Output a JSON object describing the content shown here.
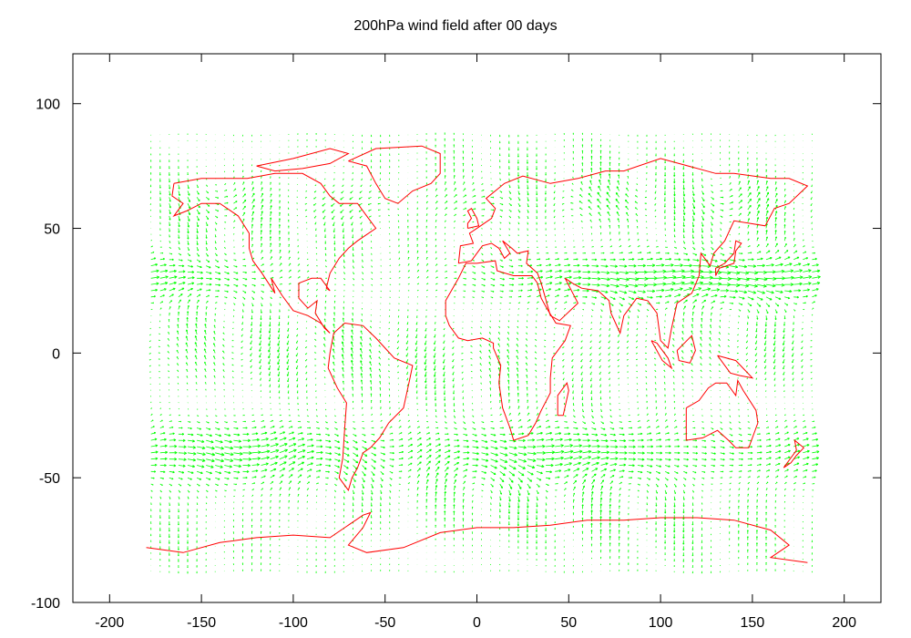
{
  "chart_data": {
    "type": "vector-field",
    "title": "200hPa wind field after 00 days",
    "xlabel": "",
    "ylabel": "",
    "xlim": [
      -220,
      220
    ],
    "ylim": [
      -100,
      120
    ],
    "xticks": [
      -200,
      -150,
      -100,
      -50,
      0,
      50,
      100,
      150,
      200
    ],
    "yticks": [
      100,
      50,
      0,
      -50,
      -100
    ],
    "grid": false,
    "legend": "none",
    "colors": {
      "vectors": "#00ff00",
      "coastlines": "#ff0000",
      "axes": "#000000"
    },
    "vector_grid": {
      "lon_range": [
        -177.5,
        182.5
      ],
      "lat_range": [
        -87.5,
        87.5
      ],
      "lon_step": 5,
      "lat_step": 2.5
    },
    "wind_pattern": [
      {
        "lat_center": 30,
        "u": 55,
        "description": "northern subtropical jet"
      },
      {
        "lat_center": -40,
        "u": 45,
        "description": "southern jet"
      },
      {
        "lat_center": 0,
        "u": -8,
        "description": "tropical easterlies"
      }
    ],
    "coastlines": [
      {
        "name": "north-america",
        "points": [
          [
            -165,
            68
          ],
          [
            -150,
            70
          ],
          [
            -140,
            70
          ],
          [
            -125,
            70
          ],
          [
            -110,
            72
          ],
          [
            -95,
            72
          ],
          [
            -85,
            68
          ],
          [
            -80,
            63
          ],
          [
            -75,
            60
          ],
          [
            -65,
            60
          ],
          [
            -60,
            55
          ],
          [
            -55,
            50
          ],
          [
            -65,
            45
          ],
          [
            -70,
            42
          ],
          [
            -75,
            38
          ],
          [
            -80,
            32
          ],
          [
            -82,
            26
          ],
          [
            -80,
            25
          ],
          [
            -85,
            30
          ],
          [
            -90,
            30
          ],
          [
            -97,
            28
          ],
          [
            -97,
            22
          ],
          [
            -92,
            18
          ],
          [
            -87,
            21
          ],
          [
            -88,
            16
          ],
          [
            -83,
            10
          ],
          [
            -80,
            8
          ],
          [
            -85,
            12
          ],
          [
            -92,
            15
          ],
          [
            -100,
            17
          ],
          [
            -106,
            23
          ],
          [
            -112,
            30
          ],
          [
            -110,
            24
          ],
          [
            -117,
            32
          ],
          [
            -122,
            37
          ],
          [
            -124,
            42
          ],
          [
            -124,
            48
          ],
          [
            -130,
            55
          ],
          [
            -140,
            60
          ],
          [
            -150,
            60
          ],
          [
            -158,
            57
          ],
          [
            -165,
            55
          ],
          [
            -160,
            60
          ],
          [
            -166,
            63
          ],
          [
            -165,
            68
          ]
        ]
      },
      {
        "name": "greenland",
        "points": [
          [
            -70,
            77
          ],
          [
            -55,
            82
          ],
          [
            -30,
            83
          ],
          [
            -20,
            80
          ],
          [
            -20,
            72
          ],
          [
            -25,
            68
          ],
          [
            -35,
            65
          ],
          [
            -43,
            60
          ],
          [
            -50,
            62
          ],
          [
            -55,
            68
          ],
          [
            -60,
            75
          ],
          [
            -70,
            77
          ]
        ]
      },
      {
        "name": "south-america",
        "points": [
          [
            -78,
            8
          ],
          [
            -72,
            12
          ],
          [
            -62,
            11
          ],
          [
            -55,
            6
          ],
          [
            -50,
            2
          ],
          [
            -45,
            -2
          ],
          [
            -35,
            -5
          ],
          [
            -37,
            -12
          ],
          [
            -40,
            -22
          ],
          [
            -48,
            -28
          ],
          [
            -53,
            -34
          ],
          [
            -58,
            -38
          ],
          [
            -62,
            -40
          ],
          [
            -65,
            -46
          ],
          [
            -68,
            -50
          ],
          [
            -70,
            -55
          ],
          [
            -75,
            -50
          ],
          [
            -73,
            -42
          ],
          [
            -72,
            -30
          ],
          [
            -71,
            -20
          ],
          [
            -76,
            -14
          ],
          [
            -81,
            -6
          ],
          [
            -80,
            0
          ],
          [
            -78,
            8
          ]
        ]
      },
      {
        "name": "africa-eurasia",
        "points": [
          [
            -17,
            15
          ],
          [
            -17,
            21
          ],
          [
            -10,
            30
          ],
          [
            -6,
            36
          ],
          [
            0,
            36
          ],
          [
            10,
            37
          ],
          [
            11,
            33
          ],
          [
            20,
            31
          ],
          [
            30,
            31
          ],
          [
            33,
            28
          ],
          [
            35,
            22
          ],
          [
            38,
            18
          ],
          [
            43,
            12
          ],
          [
            51,
            11
          ],
          [
            48,
            5
          ],
          [
            41,
            -2
          ],
          [
            40,
            -10
          ],
          [
            40,
            -16
          ],
          [
            35,
            -23
          ],
          [
            32,
            -28
          ],
          [
            28,
            -33
          ],
          [
            20,
            -35
          ],
          [
            18,
            -30
          ],
          [
            14,
            -22
          ],
          [
            12,
            -12
          ],
          [
            13,
            -5
          ],
          [
            9,
            2
          ],
          [
            9,
            4
          ],
          [
            3,
            6
          ],
          [
            -5,
            5
          ],
          [
            -10,
            6
          ],
          [
            -15,
            11
          ],
          [
            -17,
            15
          ]
        ]
      },
      {
        "name": "eurasia-north",
        "points": [
          [
            -10,
            36
          ],
          [
            -9,
            43
          ],
          [
            -2,
            44
          ],
          [
            -4,
            48
          ],
          [
            2,
            51
          ],
          [
            8,
            54
          ],
          [
            10,
            58
          ],
          [
            5,
            62
          ],
          [
            15,
            68
          ],
          [
            25,
            71
          ],
          [
            40,
            68
          ],
          [
            55,
            70
          ],
          [
            70,
            73
          ],
          [
            80,
            73
          ],
          [
            100,
            78
          ],
          [
            110,
            76
          ],
          [
            130,
            72
          ],
          [
            140,
            72
          ],
          [
            160,
            70
          ],
          [
            170,
            70
          ],
          [
            180,
            67
          ],
          [
            170,
            60
          ],
          [
            162,
            58
          ],
          [
            157,
            51
          ],
          [
            140,
            53
          ],
          [
            135,
            45
          ],
          [
            129,
            40
          ],
          [
            127,
            35
          ],
          [
            122,
            40
          ],
          [
            121,
            31
          ],
          [
            117,
            24
          ],
          [
            109,
            20
          ],
          [
            106,
            10
          ],
          [
            104,
            2
          ],
          [
            100,
            5
          ],
          [
            98,
            16
          ],
          [
            93,
            21
          ],
          [
            87,
            22
          ],
          [
            80,
            15
          ],
          [
            78,
            8
          ],
          [
            73,
            16
          ],
          [
            72,
            21
          ],
          [
            66,
            25
          ],
          [
            57,
            26
          ],
          [
            52,
            28
          ],
          [
            48,
            30
          ],
          [
            55,
            20
          ],
          [
            45,
            13
          ],
          [
            40,
            15
          ],
          [
            35,
            28
          ],
          [
            33,
            32
          ],
          [
            27,
            36
          ],
          [
            28,
            41
          ],
          [
            22,
            40
          ],
          [
            19,
            42
          ],
          [
            14,
            45
          ],
          [
            18,
            40
          ],
          [
            15,
            38
          ],
          [
            12,
            42
          ],
          [
            8,
            44
          ],
          [
            3,
            43
          ],
          [
            -3,
            37
          ],
          [
            -10,
            36
          ]
        ]
      },
      {
        "name": "australia",
        "points": [
          [
            114,
            -22
          ],
          [
            114,
            -35
          ],
          [
            123,
            -34
          ],
          [
            131,
            -31
          ],
          [
            137,
            -35
          ],
          [
            141,
            -38
          ],
          [
            148,
            -38
          ],
          [
            153,
            -28
          ],
          [
            152,
            -23
          ],
          [
            145,
            -15
          ],
          [
            142,
            -11
          ],
          [
            141,
            -17
          ],
          [
            136,
            -12
          ],
          [
            130,
            -12
          ],
          [
            126,
            -14
          ],
          [
            121,
            -19
          ],
          [
            114,
            -22
          ]
        ]
      },
      {
        "name": "antarctica",
        "points": [
          [
            -180,
            -78
          ],
          [
            -160,
            -80
          ],
          [
            -140,
            -76
          ],
          [
            -120,
            -74
          ],
          [
            -100,
            -73
          ],
          [
            -80,
            -74
          ],
          [
            -62,
            -65
          ],
          [
            -58,
            -64
          ],
          [
            -62,
            -70
          ],
          [
            -70,
            -77
          ],
          [
            -60,
            -80
          ],
          [
            -40,
            -78
          ],
          [
            -20,
            -72
          ],
          [
            0,
            -70
          ],
          [
            20,
            -70
          ],
          [
            40,
            -69
          ],
          [
            60,
            -67
          ],
          [
            80,
            -67
          ],
          [
            100,
            -66
          ],
          [
            120,
            -66
          ],
          [
            140,
            -67
          ],
          [
            160,
            -71
          ],
          [
            170,
            -77
          ],
          [
            160,
            -82
          ],
          [
            180,
            -84
          ]
        ]
      },
      {
        "name": "japan",
        "points": [
          [
            130,
            31
          ],
          [
            132,
            34
          ],
          [
            136,
            35
          ],
          [
            140,
            36
          ],
          [
            141,
            41
          ],
          [
            144,
            44
          ],
          [
            141,
            45
          ],
          [
            140,
            40
          ],
          [
            135,
            36
          ],
          [
            130,
            34
          ],
          [
            130,
            31
          ]
        ]
      },
      {
        "name": "britain",
        "points": [
          [
            -5,
            50
          ],
          [
            1,
            51
          ],
          [
            0,
            54
          ],
          [
            -3,
            58
          ],
          [
            -5,
            57
          ],
          [
            -3,
            54
          ],
          [
            -5,
            52
          ],
          [
            -5,
            50
          ]
        ]
      },
      {
        "name": "madagascar",
        "points": [
          [
            44,
            -25
          ],
          [
            47,
            -25
          ],
          [
            50,
            -15
          ],
          [
            49,
            -12
          ],
          [
            44,
            -17
          ],
          [
            44,
            -25
          ]
        ]
      },
      {
        "name": "new-zealand",
        "points": [
          [
            167,
            -46
          ],
          [
            171,
            -44
          ],
          [
            174,
            -41
          ],
          [
            178,
            -38
          ],
          [
            173,
            -35
          ],
          [
            174,
            -39
          ],
          [
            170,
            -43
          ],
          [
            167,
            -46
          ]
        ]
      },
      {
        "name": "indonesia",
        "points": [
          [
            95,
            5
          ],
          [
            98,
            4
          ],
          [
            104,
            -2
          ],
          [
            106,
            -6
          ],
          [
            101,
            -3
          ],
          [
            95,
            5
          ]
        ]
      },
      {
        "name": "borneo",
        "points": [
          [
            109,
            1
          ],
          [
            117,
            7
          ],
          [
            119,
            1
          ],
          [
            116,
            -4
          ],
          [
            110,
            -3
          ],
          [
            109,
            1
          ]
        ]
      },
      {
        "name": "new-guinea",
        "points": [
          [
            131,
            -1
          ],
          [
            141,
            -3
          ],
          [
            150,
            -10
          ],
          [
            143,
            -9
          ],
          [
            138,
            -8
          ],
          [
            131,
            -1
          ]
        ]
      },
      {
        "name": "arctic-islands",
        "points": [
          [
            -120,
            75
          ],
          [
            -100,
            78
          ],
          [
            -80,
            82
          ],
          [
            -70,
            80
          ],
          [
            -80,
            76
          ],
          [
            -95,
            74
          ],
          [
            -110,
            73
          ],
          [
            -120,
            75
          ]
        ]
      }
    ]
  }
}
